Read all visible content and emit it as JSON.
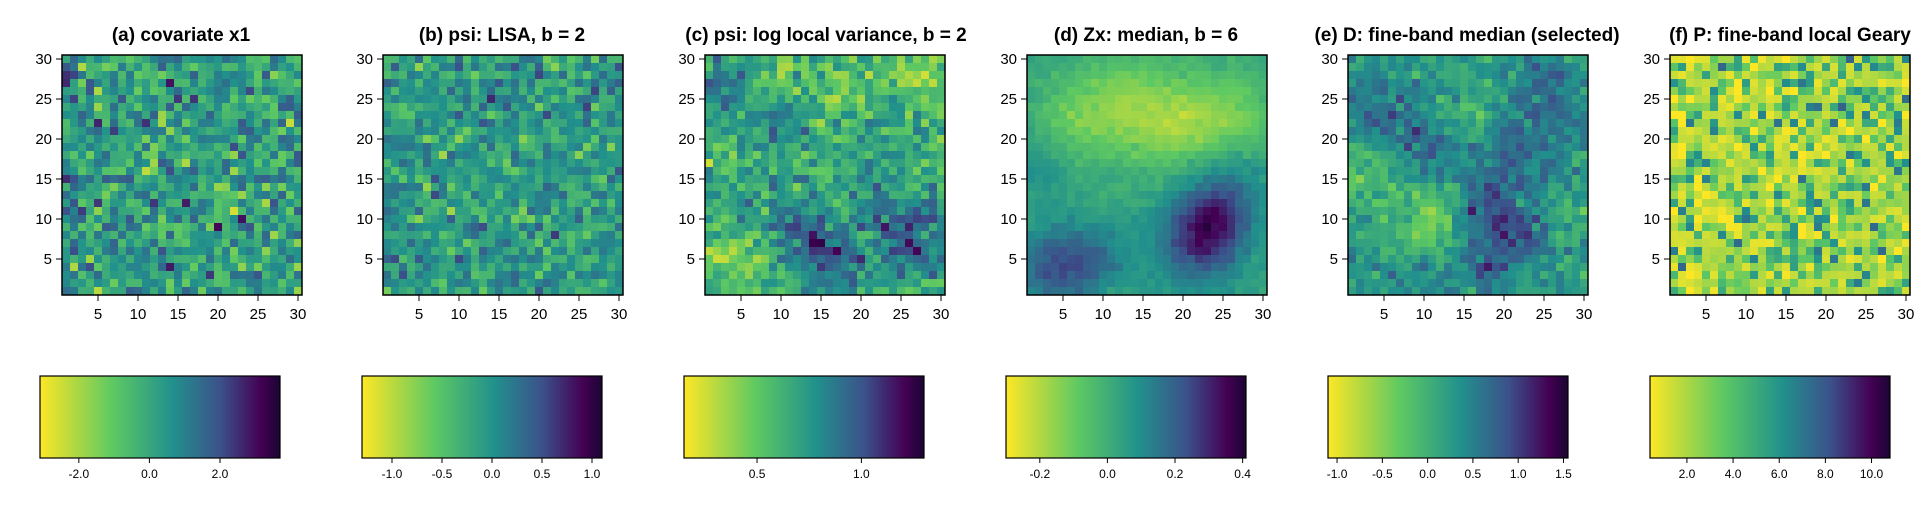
{
  "colormap": [
    "#fde725",
    "#5ec962",
    "#21918c",
    "#3b528b",
    "#440154",
    "#1a0533"
  ],
  "panels": [
    {
      "title": "(a) covariate x1",
      "x_ticks": [
        "5",
        "10",
        "15",
        "20",
        "25",
        "30"
      ],
      "y_ticks": [
        "5",
        "10",
        "15",
        "20",
        "25",
        "30"
      ],
      "colorbar_ticks": [
        "-2.0",
        "0.0",
        "2.0"
      ]
    },
    {
      "title": "(b) psi: LISA, b = 2",
      "x_ticks": [
        "5",
        "10",
        "15",
        "20",
        "25",
        "30"
      ],
      "y_ticks": [
        "5",
        "10",
        "15",
        "20",
        "25",
        "30"
      ],
      "colorbar_ticks": [
        "-1.0",
        "-0.5",
        "0.0",
        "0.5",
        "1.0"
      ]
    },
    {
      "title": "(c) psi: log local variance, b = 2",
      "x_ticks": [
        "5",
        "10",
        "15",
        "20",
        "25",
        "30"
      ],
      "y_ticks": [
        "5",
        "10",
        "15",
        "20",
        "25",
        "30"
      ],
      "colorbar_ticks": [
        "0.5",
        "1.0"
      ]
    },
    {
      "title": "(d) Zx: median, b = 6",
      "x_ticks": [
        "5",
        "10",
        "15",
        "20",
        "25",
        "30"
      ],
      "y_ticks": [
        "5",
        "10",
        "15",
        "20",
        "25",
        "30"
      ],
      "colorbar_ticks": [
        "-0.2",
        "0.0",
        "0.2",
        "0.4"
      ]
    },
    {
      "title": "(e) D: fine-band median (selected)",
      "x_ticks": [
        "5",
        "10",
        "15",
        "20",
        "25",
        "30"
      ],
      "y_ticks": [
        "5",
        "10",
        "15",
        "20",
        "25",
        "30"
      ],
      "colorbar_ticks": [
        "-1.0",
        "-0.5",
        "0.0",
        "0.5",
        "1.0",
        "1.5"
      ]
    },
    {
      "title": "(f) P: fine-band local Geary",
      "x_ticks": [
        "5",
        "10",
        "15",
        "20",
        "25",
        "30"
      ],
      "y_ticks": [
        "5",
        "10",
        "15",
        "20",
        "25",
        "30"
      ],
      "colorbar_ticks": [
        "2.0",
        "4.0",
        "6.0",
        "8.0",
        "10.0"
      ]
    }
  ],
  "chart_data": [
    {
      "type": "heatmap",
      "title": "(a) covariate x1",
      "grid": [
        30,
        30
      ],
      "xlim": [
        0.5,
        30.5
      ],
      "ylim": [
        0.5,
        30.5
      ],
      "value_range": [
        -3.1,
        3.7
      ],
      "pattern": "white-noise",
      "colorbar": {
        "ticks": [
          -2.0,
          0.0,
          2.0
        ],
        "range": [
          -3.1,
          3.7
        ]
      }
    },
    {
      "type": "heatmap",
      "title": "(b) psi: LISA, b = 2",
      "grid": [
        30,
        30
      ],
      "xlim": [
        0.5,
        30.5
      ],
      "ylim": [
        0.5,
        30.5
      ],
      "value_range": [
        -1.3,
        1.1
      ],
      "pattern": "white-noise",
      "colorbar": {
        "ticks": [
          -1.0,
          -0.5,
          0.0,
          0.5,
          1.0
        ],
        "range": [
          -1.3,
          1.1
        ]
      }
    },
    {
      "type": "heatmap",
      "title": "(c) psi: log local variance, b = 2",
      "grid": [
        30,
        30
      ],
      "xlim": [
        0.5,
        30.5
      ],
      "ylim": [
        0.5,
        30.5
      ],
      "value_range": [
        0.15,
        1.3
      ],
      "pattern": "patchy",
      "colorbar": {
        "ticks": [
          0.5,
          1.0
        ],
        "range": [
          0.15,
          1.3
        ]
      }
    },
    {
      "type": "heatmap",
      "title": "(d) Zx: median, b = 6",
      "grid": [
        30,
        30
      ],
      "xlim": [
        0.5,
        30.5
      ],
      "ylim": [
        0.5,
        30.5
      ],
      "value_range": [
        -0.3,
        0.41
      ],
      "pattern": "smooth",
      "colorbar": {
        "ticks": [
          -0.2,
          0.0,
          0.2,
          0.4
        ],
        "range": [
          -0.3,
          0.41
        ]
      }
    },
    {
      "type": "heatmap",
      "title": "(e) D: fine-band median (selected)",
      "grid": [
        30,
        30
      ],
      "xlim": [
        0.5,
        30.5
      ],
      "ylim": [
        0.5,
        30.5
      ],
      "value_range": [
        -1.1,
        1.55
      ],
      "pattern": "smooth",
      "colorbar": {
        "ticks": [
          -1.0,
          -0.5,
          0.0,
          0.5,
          1.0,
          1.5
        ],
        "range": [
          -1.1,
          1.55
        ]
      }
    },
    {
      "type": "heatmap",
      "title": "(f) P: fine-band local Geary",
      "grid": [
        30,
        30
      ],
      "xlim": [
        0.5,
        30.5
      ],
      "ylim": [
        0.5,
        30.5
      ],
      "value_range": [
        0.4,
        10.8
      ],
      "pattern": "skewed-noise",
      "colorbar": {
        "ticks": [
          2.0,
          4.0,
          6.0,
          8.0,
          10.0
        ],
        "range": [
          0.4,
          10.8
        ]
      }
    }
  ]
}
